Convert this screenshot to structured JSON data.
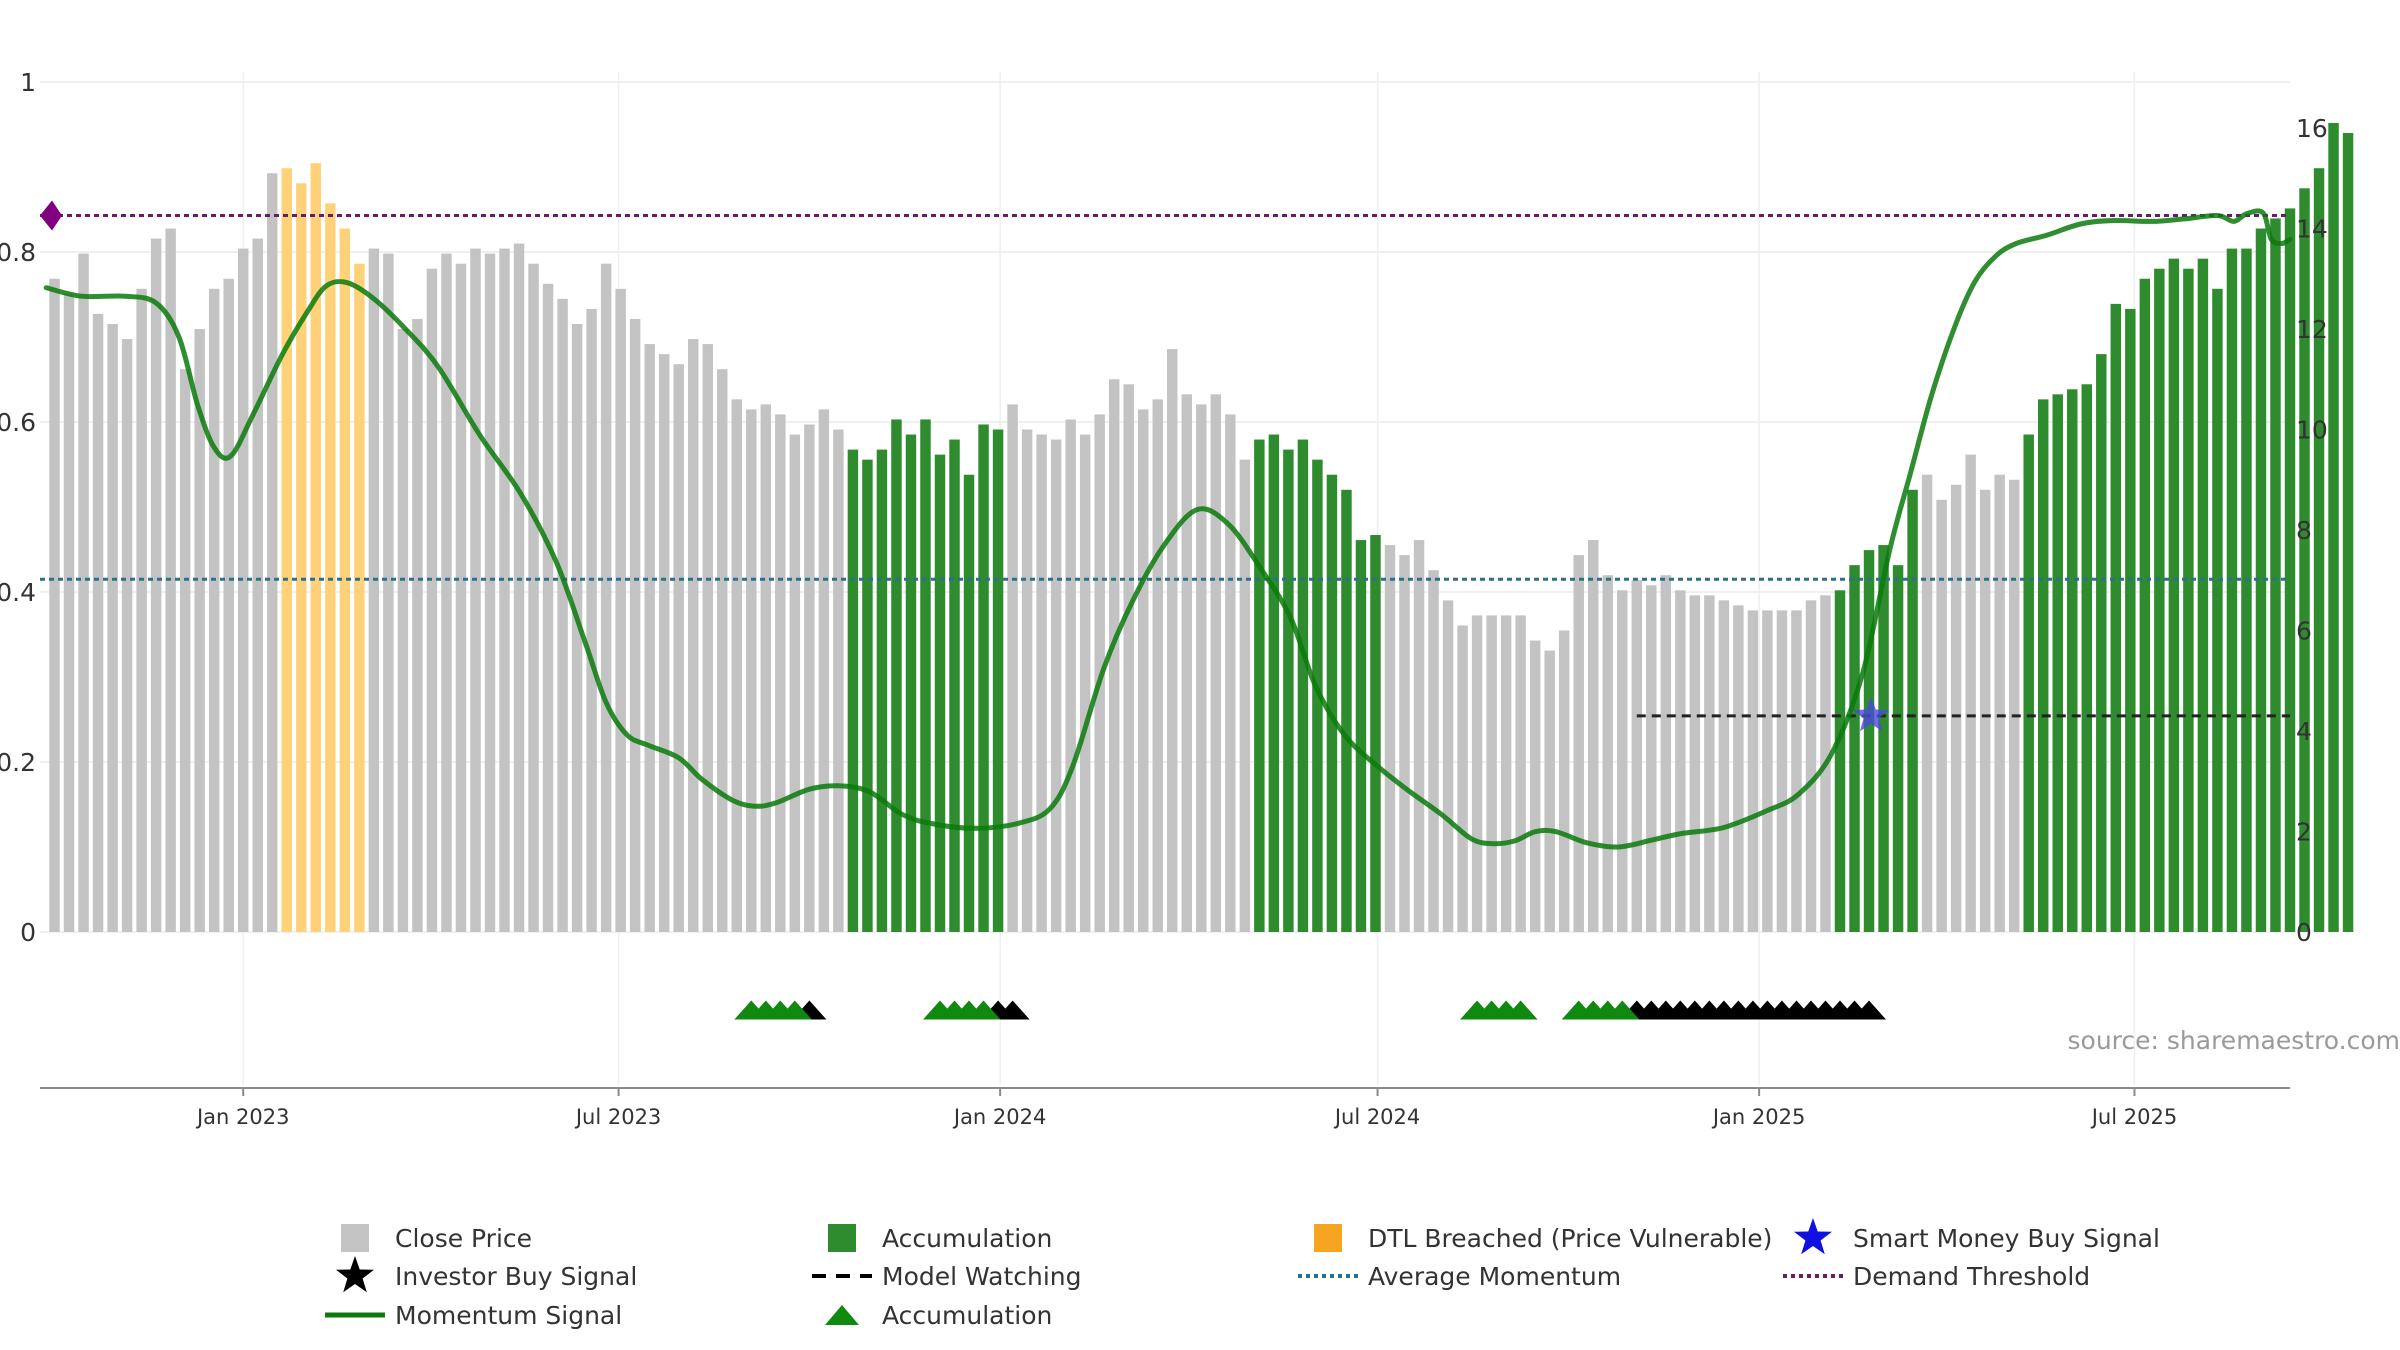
{
  "chart_data": {
    "type": "bar",
    "title": "",
    "source": "source: sharemaestro.com",
    "x_axis": {
      "ticks": [
        "Jan 2023",
        "Jul 2023",
        "Jan 2024",
        "Jul 2024",
        "Jan 2025",
        "Jul 2025"
      ],
      "range": [
        "2022-09-25",
        "2025-09-14"
      ]
    },
    "y_left": {
      "range": [
        0,
        1
      ],
      "ticks": [
        "0",
        "0.2",
        "0.4",
        "0.6",
        "0.8",
        "1"
      ]
    },
    "y_right": {
      "range": [
        0,
        16
      ],
      "ticks": [
        "0",
        "2",
        "4",
        "6",
        "8",
        "10",
        "12",
        "14",
        "16"
      ]
    },
    "grid": true,
    "legend_placement": "bottom",
    "colors": {
      "close": "#c3c3c3",
      "accumulation": "#2e8b2e",
      "dtl": "#ffd27a",
      "momentum": "#0b7a0b",
      "avg_momentum": "#2d6f8e",
      "demand_threshold": "#6b1a6b",
      "smart_money": "#4a4ad8",
      "model_watching": "#222222",
      "accum_marker": "#0f8a0f",
      "investor_marker": "#000000"
    },
    "series": [
      {
        "name": "Close Price",
        "axis": "right",
        "start_date": "2022-10-02",
        "interval_days": 7,
        "values": [
          13.0,
          12.7,
          13.5,
          12.3,
          12.1,
          11.8,
          12.8,
          13.8,
          14.0,
          11.2,
          12.0,
          12.8,
          13.0,
          13.6,
          13.8,
          15.1,
          15.2,
          14.9,
          15.3,
          14.5,
          14.0,
          13.3,
          13.6,
          13.5,
          12.0,
          12.2,
          13.2,
          13.5,
          13.3,
          13.6,
          13.5,
          13.6,
          13.7,
          13.3,
          12.9,
          12.6,
          12.1,
          12.4,
          13.3,
          12.8,
          12.2,
          11.7,
          11.5,
          11.3,
          11.8,
          11.7,
          11.2,
          10.6,
          10.4,
          10.5,
          10.3,
          9.9,
          10.1,
          10.4,
          10.0,
          9.6,
          9.4,
          9.6,
          10.2,
          9.9,
          10.2,
          9.5,
          9.8,
          9.1,
          10.1,
          10.0,
          10.5,
          10.0,
          9.9,
          9.8,
          10.2,
          9.9,
          10.3,
          11.0,
          10.9,
          10.4,
          10.6,
          11.6,
          10.7,
          10.5,
          10.7,
          10.3,
          9.4,
          9.8,
          9.9,
          9.6,
          9.8,
          9.4,
          9.1,
          8.8,
          7.8,
          7.9,
          7.7,
          7.5,
          7.8,
          7.2,
          6.6,
          6.1,
          6.3,
          6.3,
          6.3,
          6.3,
          5.8,
          5.6,
          6.0,
          7.5,
          7.8,
          7.1,
          6.8,
          7.0,
          6.9,
          7.1,
          6.8,
          6.7,
          6.7,
          6.6,
          6.5,
          6.4,
          6.4,
          6.4,
          6.4,
          6.6,
          6.7,
          6.8,
          7.3,
          7.6,
          7.7,
          7.3,
          8.8,
          9.1,
          8.6,
          8.9,
          9.5,
          8.8,
          9.1,
          9.0,
          9.9,
          10.6,
          10.7,
          10.8,
          10.9,
          11.5,
          12.5,
          12.4,
          13.0,
          13.2,
          13.4,
          13.2,
          13.4,
          12.8,
          13.6,
          13.6,
          14.0,
          14.2,
          14.4,
          14.8,
          15.2,
          16.1,
          15.9
        ],
        "bar_state": "ccccccccccccccccddddddcccccccccccccccccccccccccccccccccaaaaaaaaaaacccccccccccccccccaaaaaaaaacccccccccccccccccccccccccccccccaaaaaacccccccaaaaaaaaaaaaaaaaaaaaaaaaacccccccccccccccccccccccccccccccccccccccccddddddd"
      },
      {
        "name": "Momentum Signal",
        "axis": "left",
        "points": [
          [
            "2022-09-28",
            0.758
          ],
          [
            "2022-10-15",
            0.748
          ],
          [
            "2022-11-05",
            0.748
          ],
          [
            "2022-11-20",
            0.74
          ],
          [
            "2022-12-01",
            0.7
          ],
          [
            "2022-12-10",
            0.62
          ],
          [
            "2022-12-18",
            0.57
          ],
          [
            "2022-12-26",
            0.56
          ],
          [
            "2023-01-06",
            0.61
          ],
          [
            "2023-01-20",
            0.68
          ],
          [
            "2023-02-01",
            0.73
          ],
          [
            "2023-02-10",
            0.76
          ],
          [
            "2023-02-20",
            0.764
          ],
          [
            "2023-03-05",
            0.745
          ],
          [
            "2023-03-20",
            0.71
          ],
          [
            "2023-04-05",
            0.665
          ],
          [
            "2023-04-25",
            0.585
          ],
          [
            "2023-05-15",
            0.515
          ],
          [
            "2023-06-01",
            0.435
          ],
          [
            "2023-06-15",
            0.34
          ],
          [
            "2023-06-25",
            0.27
          ],
          [
            "2023-07-05",
            0.232
          ],
          [
            "2023-07-15",
            0.22
          ],
          [
            "2023-07-30",
            0.205
          ],
          [
            "2023-08-10",
            0.18
          ],
          [
            "2023-08-25",
            0.155
          ],
          [
            "2023-09-05",
            0.148
          ],
          [
            "2023-09-15",
            0.152
          ],
          [
            "2023-10-01",
            0.168
          ],
          [
            "2023-10-15",
            0.172
          ],
          [
            "2023-10-30",
            0.165
          ],
          [
            "2023-11-15",
            0.138
          ],
          [
            "2023-11-30",
            0.127
          ],
          [
            "2023-12-20",
            0.122
          ],
          [
            "2024-01-10",
            0.128
          ],
          [
            "2024-01-25",
            0.145
          ],
          [
            "2024-02-05",
            0.195
          ],
          [
            "2024-02-20",
            0.31
          ],
          [
            "2024-03-05",
            0.39
          ],
          [
            "2024-03-20",
            0.455
          ],
          [
            "2024-04-05",
            0.497
          ],
          [
            "2024-04-20",
            0.48
          ],
          [
            "2024-05-05",
            0.43
          ],
          [
            "2024-05-20",
            0.37
          ],
          [
            "2024-06-01",
            0.29
          ],
          [
            "2024-06-15",
            0.232
          ],
          [
            "2024-07-01",
            0.195
          ],
          [
            "2024-07-15",
            0.168
          ],
          [
            "2024-08-01",
            0.138
          ],
          [
            "2024-08-15",
            0.11
          ],
          [
            "2024-08-25",
            0.104
          ],
          [
            "2024-09-05",
            0.107
          ],
          [
            "2024-09-15",
            0.118
          ],
          [
            "2024-09-25",
            0.118
          ],
          [
            "2024-10-10",
            0.105
          ],
          [
            "2024-10-25",
            0.1
          ],
          [
            "2024-11-10",
            0.108
          ],
          [
            "2024-11-25",
            0.116
          ],
          [
            "2024-12-15",
            0.123
          ],
          [
            "2025-01-05",
            0.143
          ],
          [
            "2025-01-20",
            0.162
          ],
          [
            "2025-02-05",
            0.21
          ],
          [
            "2025-02-20",
            0.305
          ],
          [
            "2025-03-05",
            0.45
          ],
          [
            "2025-03-15",
            0.54
          ],
          [
            "2025-03-25",
            0.63
          ],
          [
            "2025-04-05",
            0.71
          ],
          [
            "2025-04-15",
            0.765
          ],
          [
            "2025-04-25",
            0.795
          ],
          [
            "2025-05-05",
            0.81
          ],
          [
            "2025-05-20",
            0.82
          ],
          [
            "2025-06-05",
            0.833
          ],
          [
            "2025-06-20",
            0.837
          ],
          [
            "2025-07-10",
            0.836
          ],
          [
            "2025-07-25",
            0.839
          ],
          [
            "2025-08-10",
            0.843
          ],
          [
            "2025-08-18",
            0.836
          ],
          [
            "2025-08-24",
            0.845
          ],
          [
            "2025-09-01",
            0.846
          ],
          [
            "2025-09-05",
            0.815
          ],
          [
            "2025-09-10",
            0.81
          ],
          [
            "2025-09-14",
            0.815
          ]
        ]
      },
      {
        "name": "Average Momentum",
        "axis": "left",
        "value": 0.415
      },
      {
        "name": "Demand Threshold",
        "axis": "left",
        "value": 0.843
      },
      {
        "name": "Model Watching",
        "axis": "right",
        "value": 4.3,
        "from": "2024-11-03",
        "to": "2025-09-14"
      },
      {
        "name": "Smart Money Buy Signal",
        "axis": "right",
        "points": [
          [
            "2025-02-24",
            4.3
          ]
        ]
      },
      {
        "name": "Accumulation",
        "marker": "triangle",
        "dates": [
          "2023-09-03",
          "2023-09-10",
          "2023-09-17",
          "2023-09-24",
          "2023-12-03",
          "2023-12-10",
          "2023-12-17",
          "2023-12-24",
          "2024-08-18",
          "2024-08-25",
          "2024-09-01",
          "2024-09-08",
          "2024-10-06",
          "2024-10-13",
          "2024-10-20",
          "2024-10-27"
        ]
      },
      {
        "name": "Investor Buy Signal",
        "marker": "triangle",
        "dates": [
          "2023-10-01",
          "2023-12-31",
          "2024-01-07",
          "2024-11-03",
          "2024-11-10",
          "2024-11-17",
          "2024-11-24",
          "2024-12-01",
          "2024-12-08",
          "2024-12-15",
          "2024-12-22",
          "2024-12-29",
          "2025-01-05",
          "2025-01-12",
          "2025-01-19",
          "2025-01-26",
          "2025-02-02",
          "2025-02-09",
          "2025-02-16",
          "2025-02-23"
        ]
      }
    ],
    "legend": [
      {
        "icon": "close-price-swatch",
        "label": "Close Price"
      },
      {
        "icon": "accumulation-swatch",
        "label": "Accumulation"
      },
      {
        "icon": "dtl-swatch",
        "label": "DTL Breached (Price Vulnerable)"
      },
      {
        "icon": "smart-money-star",
        "label": "Smart Money Buy Signal"
      },
      {
        "icon": "investor-star",
        "label": "Investor Buy Signal"
      },
      {
        "icon": "model-watching-line",
        "label": "Model Watching"
      },
      {
        "icon": "avg-momentum-line",
        "label": "Average Momentum"
      },
      {
        "icon": "demand-threshold-line",
        "label": "Demand Threshold"
      },
      {
        "icon": "momentum-line",
        "label": "Momentum Signal"
      },
      {
        "icon": "accumulation-triangle",
        "label": "Accumulation"
      }
    ]
  }
}
